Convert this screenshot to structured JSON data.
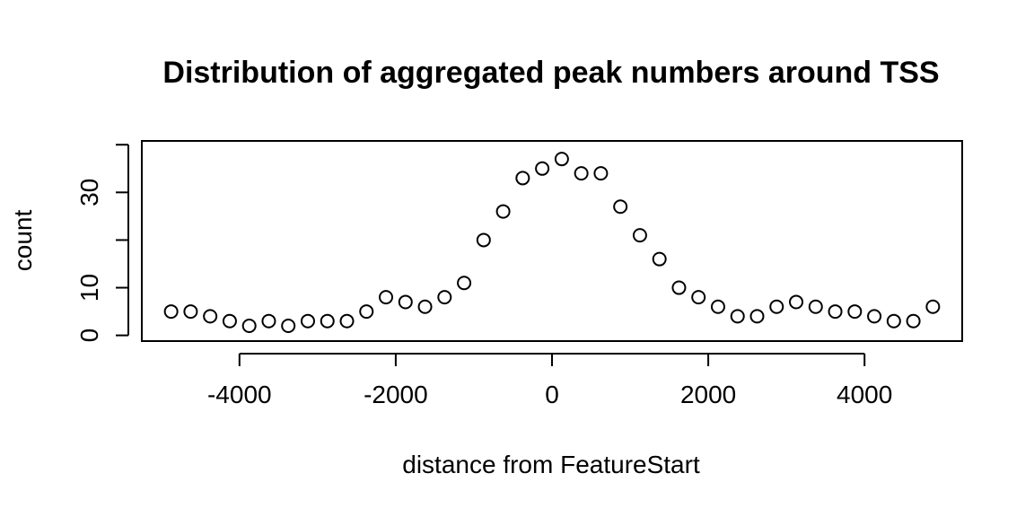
{
  "chart_data": {
    "type": "scatter",
    "title": "Distribution of aggregated peak numbers around TSS",
    "xlabel": "distance from FeatureStart",
    "ylabel": "count",
    "xlim": [
      -5250,
      5250
    ],
    "ylim": [
      -1.2,
      40.8
    ],
    "x_ticks": [
      {
        "value": -4000,
        "label": "-4000"
      },
      {
        "value": -2000,
        "label": "-2000"
      },
      {
        "value": 0,
        "label": "0"
      },
      {
        "value": 2000,
        "label": "2000"
      },
      {
        "value": 4000,
        "label": "4000"
      }
    ],
    "y_ticks": [
      {
        "value": 0,
        "label": "0"
      },
      {
        "value": 10,
        "label": "10"
      },
      {
        "value": 20,
        "label": ""
      },
      {
        "value": 30,
        "label": "30"
      },
      {
        "value": 40,
        "label": ""
      }
    ],
    "grid": false,
    "marker": "open-circle",
    "colors": {
      "points": "#000000",
      "axes": "#000000",
      "background": "#ffffff"
    },
    "points": [
      {
        "x": -4875,
        "y": 5
      },
      {
        "x": -4625,
        "y": 5
      },
      {
        "x": -4375,
        "y": 4
      },
      {
        "x": -4125,
        "y": 3
      },
      {
        "x": -3875,
        "y": 2
      },
      {
        "x": -3625,
        "y": 3
      },
      {
        "x": -3375,
        "y": 2
      },
      {
        "x": -3125,
        "y": 3
      },
      {
        "x": -2875,
        "y": 3
      },
      {
        "x": -2625,
        "y": 3
      },
      {
        "x": -2375,
        "y": 5
      },
      {
        "x": -2125,
        "y": 8
      },
      {
        "x": -1875,
        "y": 7
      },
      {
        "x": -1625,
        "y": 6
      },
      {
        "x": -1375,
        "y": 8
      },
      {
        "x": -1125,
        "y": 11
      },
      {
        "x": -875,
        "y": 20
      },
      {
        "x": -625,
        "y": 26
      },
      {
        "x": -375,
        "y": 33
      },
      {
        "x": -125,
        "y": 35
      },
      {
        "x": 125,
        "y": 37
      },
      {
        "x": 375,
        "y": 34
      },
      {
        "x": 625,
        "y": 34
      },
      {
        "x": 875,
        "y": 27
      },
      {
        "x": 1125,
        "y": 21
      },
      {
        "x": 1375,
        "y": 16
      },
      {
        "x": 1625,
        "y": 10
      },
      {
        "x": 1875,
        "y": 8
      },
      {
        "x": 2125,
        "y": 6
      },
      {
        "x": 2375,
        "y": 4
      },
      {
        "x": 2625,
        "y": 4
      },
      {
        "x": 2875,
        "y": 6
      },
      {
        "x": 3125,
        "y": 7
      },
      {
        "x": 3375,
        "y": 6
      },
      {
        "x": 3625,
        "y": 5
      },
      {
        "x": 3875,
        "y": 5
      },
      {
        "x": 4125,
        "y": 4
      },
      {
        "x": 4375,
        "y": 3
      },
      {
        "x": 4625,
        "y": 3
      },
      {
        "x": 4875,
        "y": 6
      }
    ]
  }
}
